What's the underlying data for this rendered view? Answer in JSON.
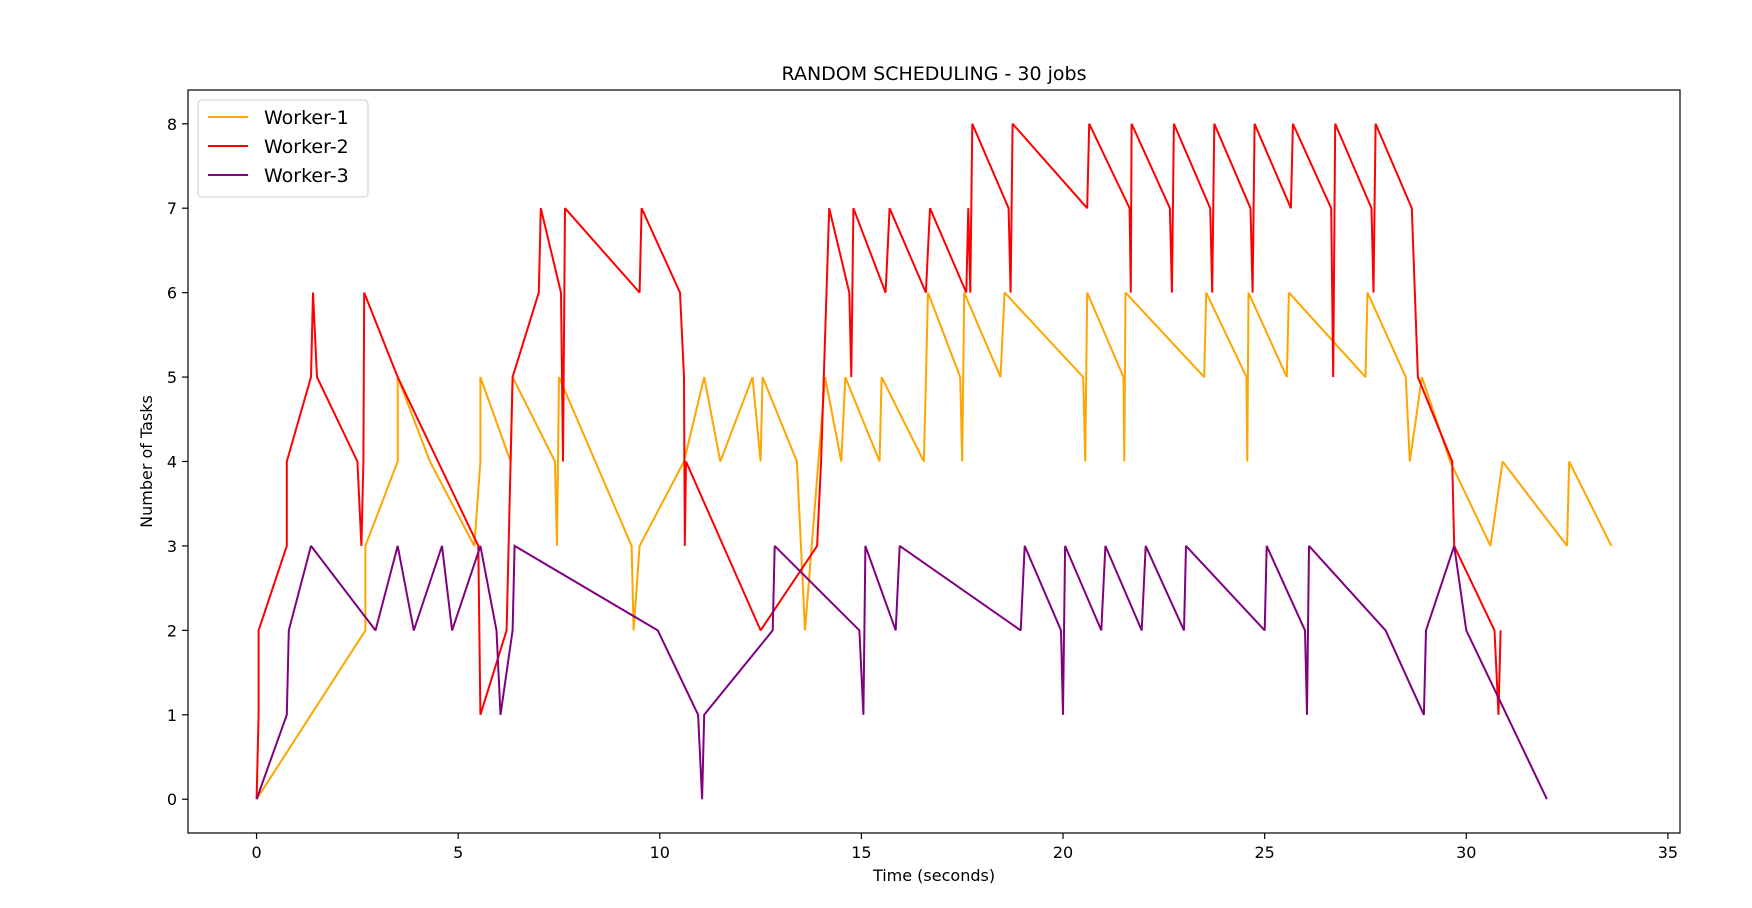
{
  "chart_data": {
    "type": "line",
    "title": "RANDOM SCHEDULING - 30 jobs",
    "xlabel": "Time (seconds)",
    "ylabel": "Number of Tasks",
    "xlim": [
      -1.7,
      35.3
    ],
    "ylim": [
      -0.4,
      8.4
    ],
    "xticks": [
      0,
      5,
      10,
      15,
      20,
      25,
      30,
      35
    ],
    "yticks": [
      0,
      1,
      2,
      3,
      4,
      5,
      6,
      7,
      8
    ],
    "xtick_labels": [
      "0",
      "5",
      "10",
      "15",
      "20",
      "25",
      "30",
      "35"
    ],
    "ytick_labels": [
      "0",
      "1",
      "2",
      "3",
      "4",
      "5",
      "6",
      "7",
      "8"
    ],
    "grid": false,
    "legend_position": "top-left",
    "series": [
      {
        "name": "Worker-1",
        "color": "#ffa500",
        "points": [
          [
            0,
            0
          ],
          [
            2.7,
            2
          ],
          [
            2.7,
            3
          ],
          [
            3.5,
            4
          ],
          [
            3.5,
            5
          ],
          [
            4.3,
            4
          ],
          [
            5.4,
            3
          ],
          [
            5.55,
            4
          ],
          [
            5.55,
            5
          ],
          [
            6.3,
            4
          ],
          [
            6.35,
            5
          ],
          [
            7.4,
            4
          ],
          [
            7.45,
            3
          ],
          [
            7.5,
            5
          ],
          [
            9.3,
            3
          ],
          [
            9.35,
            2
          ],
          [
            9.5,
            3
          ],
          [
            10.6,
            4
          ],
          [
            11.1,
            5
          ],
          [
            11.5,
            4
          ],
          [
            12.3,
            5
          ],
          [
            12.5,
            4
          ],
          [
            12.55,
            5
          ],
          [
            13.4,
            4
          ],
          [
            13.6,
            2
          ],
          [
            14.1,
            5
          ],
          [
            14.5,
            4
          ],
          [
            14.6,
            5
          ],
          [
            15.45,
            4
          ],
          [
            15.5,
            5
          ],
          [
            16.55,
            4
          ],
          [
            16.65,
            6
          ],
          [
            17.45,
            5
          ],
          [
            17.5,
            4
          ],
          [
            17.55,
            6
          ],
          [
            18.45,
            5
          ],
          [
            18.55,
            6
          ],
          [
            20.5,
            5
          ],
          [
            20.55,
            4
          ],
          [
            20.6,
            6
          ],
          [
            21.5,
            5
          ],
          [
            21.52,
            4
          ],
          [
            21.55,
            6
          ],
          [
            23.5,
            5
          ],
          [
            23.55,
            6
          ],
          [
            24.55,
            5
          ],
          [
            24.57,
            4
          ],
          [
            24.6,
            6
          ],
          [
            25.55,
            5
          ],
          [
            25.6,
            6
          ],
          [
            27.5,
            5
          ],
          [
            27.55,
            6
          ],
          [
            28.5,
            5
          ],
          [
            28.6,
            4
          ],
          [
            28.9,
            5
          ],
          [
            29.6,
            4
          ],
          [
            30.6,
            3
          ],
          [
            30.9,
            4
          ],
          [
            32.5,
            3
          ],
          [
            32.55,
            4
          ],
          [
            33.6,
            3
          ]
        ]
      },
      {
        "name": "Worker-2",
        "color": "#ff0000",
        "points": [
          [
            0,
            0
          ],
          [
            0.05,
            1
          ],
          [
            0.05,
            2
          ],
          [
            0.75,
            3
          ],
          [
            0.75,
            4
          ],
          [
            1.35,
            5
          ],
          [
            1.4,
            6
          ],
          [
            1.5,
            5
          ],
          [
            2.5,
            4
          ],
          [
            2.6,
            3
          ],
          [
            2.65,
            4
          ],
          [
            2.67,
            6
          ],
          [
            3.5,
            5
          ],
          [
            5.5,
            3
          ],
          [
            5.55,
            1
          ],
          [
            6.2,
            2
          ],
          [
            6.3,
            4
          ],
          [
            6.35,
            5
          ],
          [
            7.0,
            6
          ],
          [
            7.05,
            7
          ],
          [
            7.55,
            6
          ],
          [
            7.6,
            4
          ],
          [
            7.65,
            7
          ],
          [
            9.5,
            6
          ],
          [
            9.55,
            7
          ],
          [
            10.5,
            6
          ],
          [
            10.6,
            5
          ],
          [
            10.62,
            3
          ],
          [
            10.65,
            4
          ],
          [
            12.5,
            2
          ],
          [
            13.9,
            3
          ],
          [
            14.0,
            4
          ],
          [
            14.2,
            7
          ],
          [
            14.7,
            6
          ],
          [
            14.75,
            5
          ],
          [
            14.8,
            7
          ],
          [
            15.6,
            6
          ],
          [
            15.7,
            7
          ],
          [
            16.6,
            6
          ],
          [
            16.7,
            7
          ],
          [
            17.6,
            6
          ],
          [
            17.65,
            7
          ],
          [
            17.7,
            6
          ],
          [
            17.75,
            8
          ],
          [
            18.65,
            7
          ],
          [
            18.7,
            6
          ],
          [
            18.75,
            8
          ],
          [
            20.6,
            7
          ],
          [
            20.65,
            8
          ],
          [
            21.65,
            7
          ],
          [
            21.68,
            6
          ],
          [
            21.7,
            8
          ],
          [
            22.65,
            7
          ],
          [
            22.7,
            6
          ],
          [
            22.75,
            8
          ],
          [
            23.65,
            7
          ],
          [
            23.7,
            6
          ],
          [
            23.75,
            8
          ],
          [
            24.65,
            7
          ],
          [
            24.7,
            6
          ],
          [
            24.75,
            8
          ],
          [
            25.65,
            7
          ],
          [
            25.7,
            8
          ],
          [
            26.65,
            7
          ],
          [
            26.7,
            5
          ],
          [
            26.75,
            8
          ],
          [
            27.65,
            7
          ],
          [
            27.7,
            6
          ],
          [
            27.75,
            8
          ],
          [
            28.65,
            7
          ],
          [
            28.8,
            5
          ],
          [
            29.65,
            4
          ],
          [
            29.7,
            3
          ],
          [
            30.7,
            2
          ],
          [
            30.8,
            1
          ],
          [
            30.85,
            2
          ]
        ]
      },
      {
        "name": "Worker-3",
        "color": "#800080",
        "points": [
          [
            0,
            0
          ],
          [
            0.75,
            1
          ],
          [
            0.8,
            2
          ],
          [
            1.35,
            3
          ],
          [
            2.95,
            2
          ],
          [
            3.5,
            3
          ],
          [
            3.9,
            2
          ],
          [
            4.6,
            3
          ],
          [
            4.85,
            2
          ],
          [
            5.55,
            3
          ],
          [
            5.95,
            2
          ],
          [
            6.05,
            1
          ],
          [
            6.35,
            2
          ],
          [
            6.4,
            3
          ],
          [
            9.95,
            2
          ],
          [
            10.95,
            1
          ],
          [
            11.05,
            0
          ],
          [
            11.1,
            1
          ],
          [
            12.8,
            2
          ],
          [
            12.85,
            3
          ],
          [
            14.95,
            2
          ],
          [
            15.05,
            1
          ],
          [
            15.1,
            3
          ],
          [
            15.85,
            2
          ],
          [
            15.95,
            3
          ],
          [
            18.95,
            2
          ],
          [
            19.05,
            3
          ],
          [
            19.95,
            2
          ],
          [
            20.0,
            1
          ],
          [
            20.05,
            3
          ],
          [
            20.95,
            2
          ],
          [
            21.05,
            3
          ],
          [
            21.95,
            2
          ],
          [
            22.05,
            3
          ],
          [
            23.0,
            2
          ],
          [
            23.05,
            3
          ],
          [
            25.0,
            2
          ],
          [
            25.05,
            3
          ],
          [
            26.0,
            2
          ],
          [
            26.05,
            1
          ],
          [
            26.1,
            3
          ],
          [
            28.0,
            2
          ],
          [
            28.95,
            1
          ],
          [
            29.0,
            2
          ],
          [
            29.7,
            3
          ],
          [
            30.0,
            2
          ],
          [
            32.0,
            0
          ]
        ]
      }
    ]
  }
}
